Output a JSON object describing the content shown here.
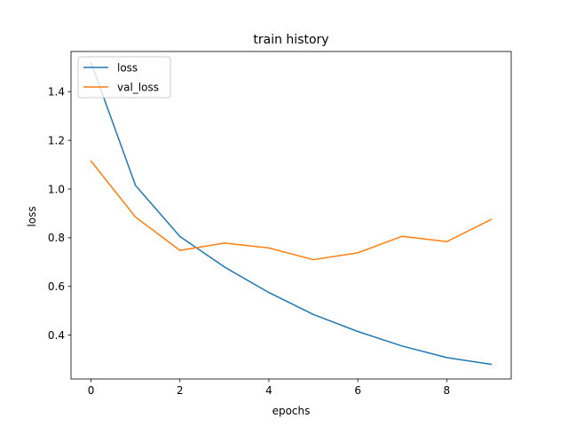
{
  "chart_data": {
    "type": "line",
    "title": "train history",
    "xlabel": "epochs",
    "ylabel": "loss",
    "x": [
      0,
      1,
      2,
      3,
      4,
      5,
      6,
      7,
      8,
      9
    ],
    "xlim": [
      -0.45,
      9.45
    ],
    "ylim": [
      0.22,
      1.565
    ],
    "xticks": [
      0,
      2,
      4,
      6,
      8
    ],
    "xtick_labels": [
      "0",
      "2",
      "4",
      "6",
      "8"
    ],
    "yticks": [
      0.4,
      0.6,
      0.8,
      1.0,
      1.2,
      1.4
    ],
    "ytick_labels": [
      "0.4",
      "0.6",
      "0.8",
      "1.0",
      "1.2",
      "1.4"
    ],
    "grid": false,
    "legend_position": "upper-left",
    "series": [
      {
        "name": "loss",
        "color": "#1f77b4",
        "values": [
          1.52,
          1.015,
          0.805,
          0.68,
          0.575,
          0.485,
          0.415,
          0.355,
          0.308,
          0.28
        ]
      },
      {
        "name": "val_loss",
        "color": "#ff7f0e",
        "values": [
          1.115,
          0.885,
          0.748,
          0.778,
          0.758,
          0.71,
          0.738,
          0.806,
          0.784,
          0.875
        ]
      }
    ]
  }
}
